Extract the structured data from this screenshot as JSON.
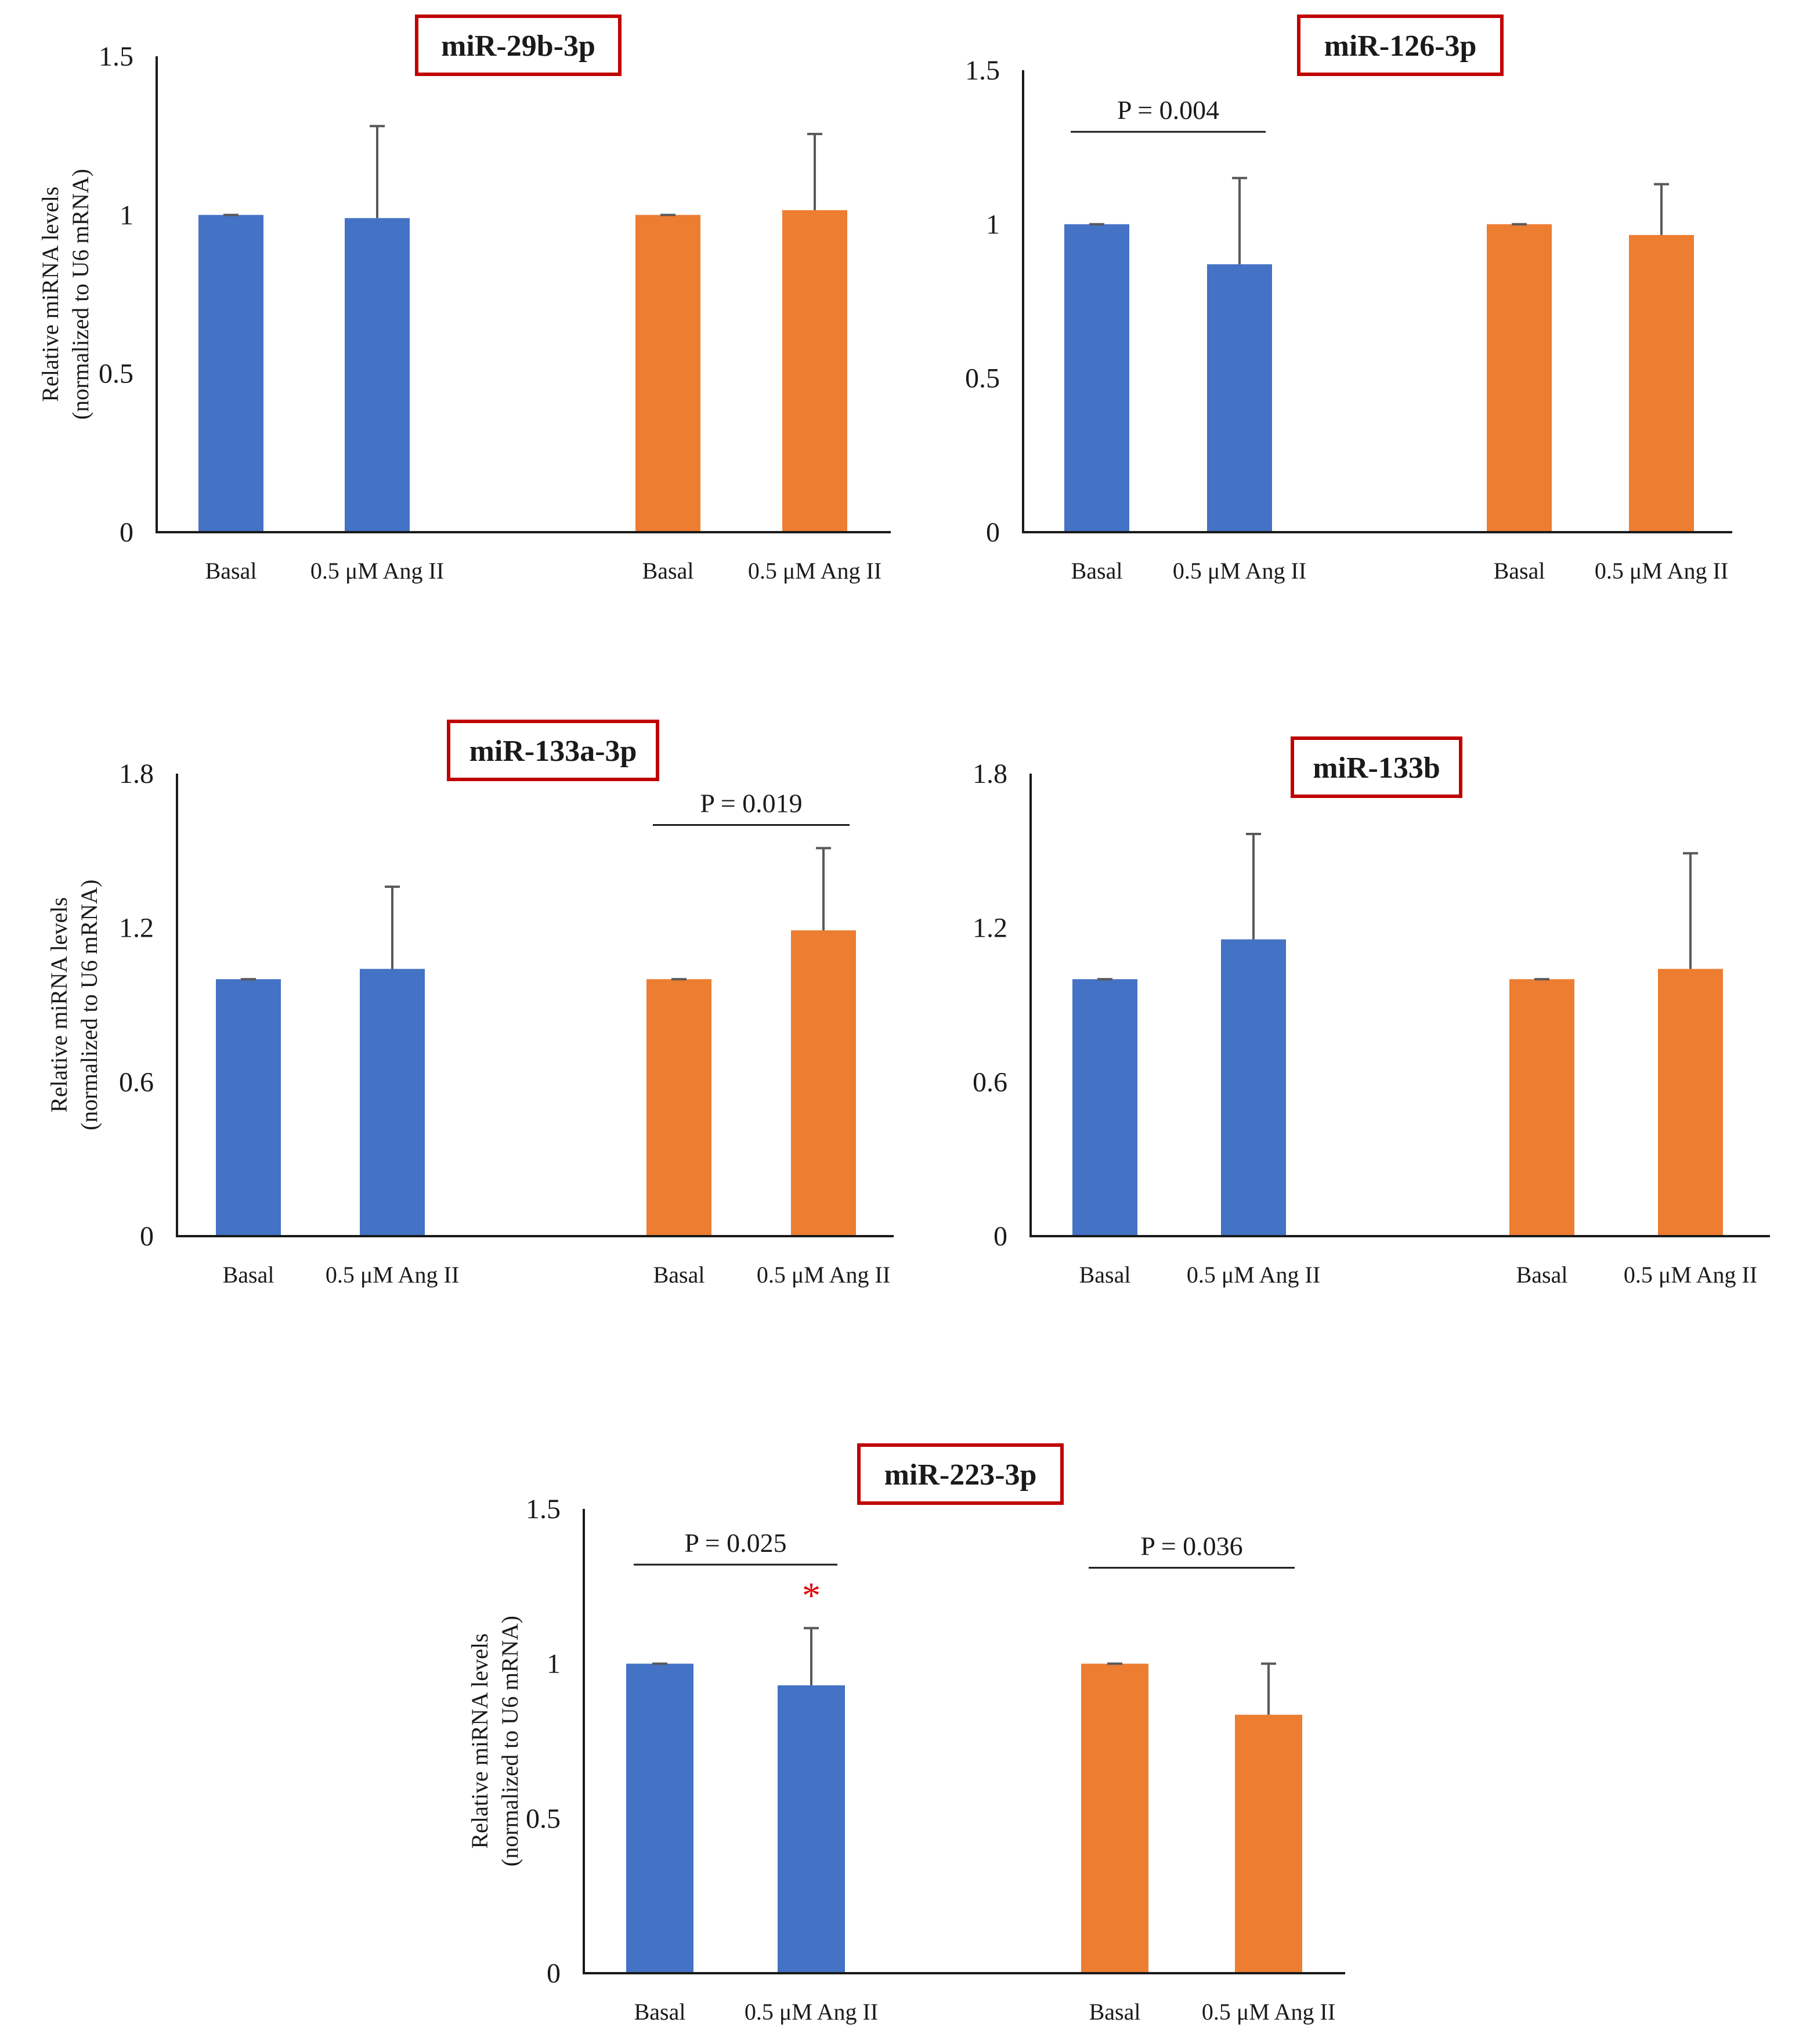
{
  "colors": {
    "blue": "#4472c4",
    "orange": "#ed7d31",
    "error_bar": "#595959",
    "title_border": "#c00000",
    "star": "#e00000",
    "axis": "#1a1a1a"
  },
  "chart_data": [
    {
      "type": "bar",
      "title": "miR-29b-3p",
      "ylabel": [
        "Relative miRNA levels",
        "(normalized to U6 mRNA)"
      ],
      "ylim": [
        0,
        1.5
      ],
      "yticks": [
        "0",
        "0.5",
        "1",
        "1.5"
      ],
      "categories": [
        "Basal",
        "0.5 μM Ang II",
        "Basal",
        "0.5 μM Ang II"
      ],
      "values": [
        1.0,
        0.99,
        1.0,
        1.015
      ],
      "errors": [
        0.0,
        0.29,
        0.0,
        0.24
      ],
      "bar_colors": [
        "blue",
        "blue",
        "orange",
        "orange"
      ],
      "annotations": []
    },
    {
      "type": "bar",
      "title": "miR-126-3p",
      "ylabel": [],
      "ylim": [
        0,
        1.5
      ],
      "yticks": [
        "0",
        "0.5",
        "1",
        "1.5"
      ],
      "categories": [
        "Basal",
        "0.5 μM Ang II",
        "Basal",
        "0.5 μM  Ang II"
      ],
      "values": [
        1.0,
        0.87,
        1.0,
        0.965
      ],
      "errors": [
        0.0,
        0.28,
        0.0,
        0.165
      ],
      "bar_colors": [
        "blue",
        "blue",
        "orange",
        "orange"
      ],
      "annotations": [
        {
          "type": "pvalue",
          "text": "P = 0.004",
          "from": 0,
          "to": 1,
          "level": 1.3
        }
      ]
    },
    {
      "type": "bar",
      "title": "miR-133a-3p",
      "ylabel": [
        "Relative miRNA levels",
        "(normalized to U6 mRNA)"
      ],
      "ylim": [
        0,
        1.8
      ],
      "yticks": [
        "0",
        "0.6",
        "1.2",
        "1.8"
      ],
      "categories": [
        "Basal",
        "0.5 μM Ang II",
        "Basal",
        "0.5 μM Ang II"
      ],
      "values": [
        1.0,
        1.04,
        1.0,
        1.19
      ],
      "errors": [
        0.0,
        0.32,
        0.0,
        0.32
      ],
      "bar_colors": [
        "blue",
        "blue",
        "orange",
        "orange"
      ],
      "annotations": [
        {
          "type": "pvalue",
          "text": "P = 0.019",
          "from": 2,
          "to": 3,
          "level": 1.6
        }
      ]
    },
    {
      "type": "bar",
      "title": "miR-133b",
      "ylabel": [],
      "ylim": [
        0,
        1.8
      ],
      "yticks": [
        "0",
        "0.6",
        "1.2",
        "1.8"
      ],
      "categories": [
        "Basal",
        "0.5 μM  Ang II",
        "Basal",
        "0.5 μM  Ang II"
      ],
      "values": [
        1.0,
        1.155,
        1.0,
        1.04
      ],
      "errors": [
        0.0,
        0.41,
        0.0,
        0.45
      ],
      "bar_colors": [
        "blue",
        "blue",
        "orange",
        "orange"
      ],
      "annotations": []
    },
    {
      "type": "bar",
      "title": "miR-223-3p",
      "ylabel": [
        "Relative miRNA levels",
        "(normalized to U6 mRNA)"
      ],
      "ylim": [
        0,
        1.5
      ],
      "yticks": [
        "0",
        "0.5",
        "1",
        "1.5"
      ],
      "categories": [
        "Basal",
        "0.5 μM Ang II",
        "Basal",
        "0.5 μM  Ang II"
      ],
      "values": [
        1.0,
        0.93,
        1.0,
        0.835
      ],
      "errors": [
        0.0,
        0.185,
        0.0,
        0.165
      ],
      "bar_colors": [
        "blue",
        "blue",
        "orange",
        "orange"
      ],
      "annotations": [
        {
          "type": "pvalue",
          "text": "P = 0.025",
          "from": 0,
          "to": 1,
          "level": 1.32
        },
        {
          "type": "pvalue",
          "text": "P = 0.036",
          "from": 2,
          "to": 3,
          "level": 1.31
        },
        {
          "type": "star",
          "text": "*",
          "bar": 1,
          "level": 1.18
        }
      ]
    }
  ]
}
